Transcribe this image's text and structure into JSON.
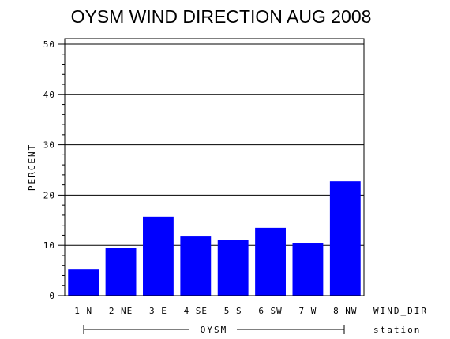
{
  "chart_data": {
    "type": "bar",
    "title": "OYSM WIND DIRECTION AUG 2008",
    "ylabel": "PERCENT",
    "xlabel": "WIND_DIR",
    "group_label": "station",
    "group_name": "OYSM",
    "categories": [
      "1 N",
      "2 NE",
      "3 E",
      "4 SE",
      "5 S",
      "6 SW",
      "7 W",
      "8 NW"
    ],
    "values": [
      5.3,
      9.5,
      15.7,
      11.9,
      11.1,
      13.5,
      10.5,
      22.7
    ],
    "ylim": [
      0,
      50
    ],
    "yticks": [
      "0",
      "10",
      "20",
      "30",
      "40",
      "50"
    ],
    "grid": true,
    "bar_color": "#0000ff"
  }
}
